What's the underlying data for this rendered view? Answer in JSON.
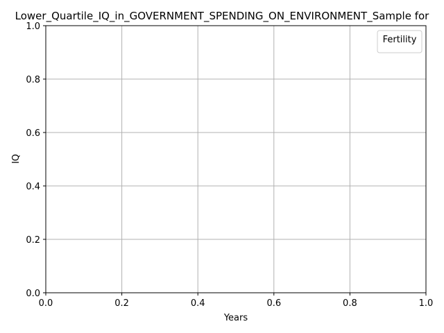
{
  "chart_data": {
    "type": "line",
    "title": "Lower_Quartile_IQ_in_GOVERNMENT_SPENDING_ON_ENVIRONMENT_Sample for",
    "xlabel": "Years",
    "ylabel": "IQ",
    "xlim": [
      0.0,
      1.0
    ],
    "ylim": [
      0.0,
      1.0
    ],
    "x_ticks": [
      "0.0",
      "0.2",
      "0.4",
      "0.6",
      "0.8",
      "1.0"
    ],
    "y_ticks": [
      "0.0",
      "0.2",
      "0.4",
      "0.6",
      "0.8",
      "1.0"
    ],
    "grid": true,
    "legend": {
      "title": "Fertility",
      "placement": "top-right",
      "entries": []
    },
    "series": []
  }
}
